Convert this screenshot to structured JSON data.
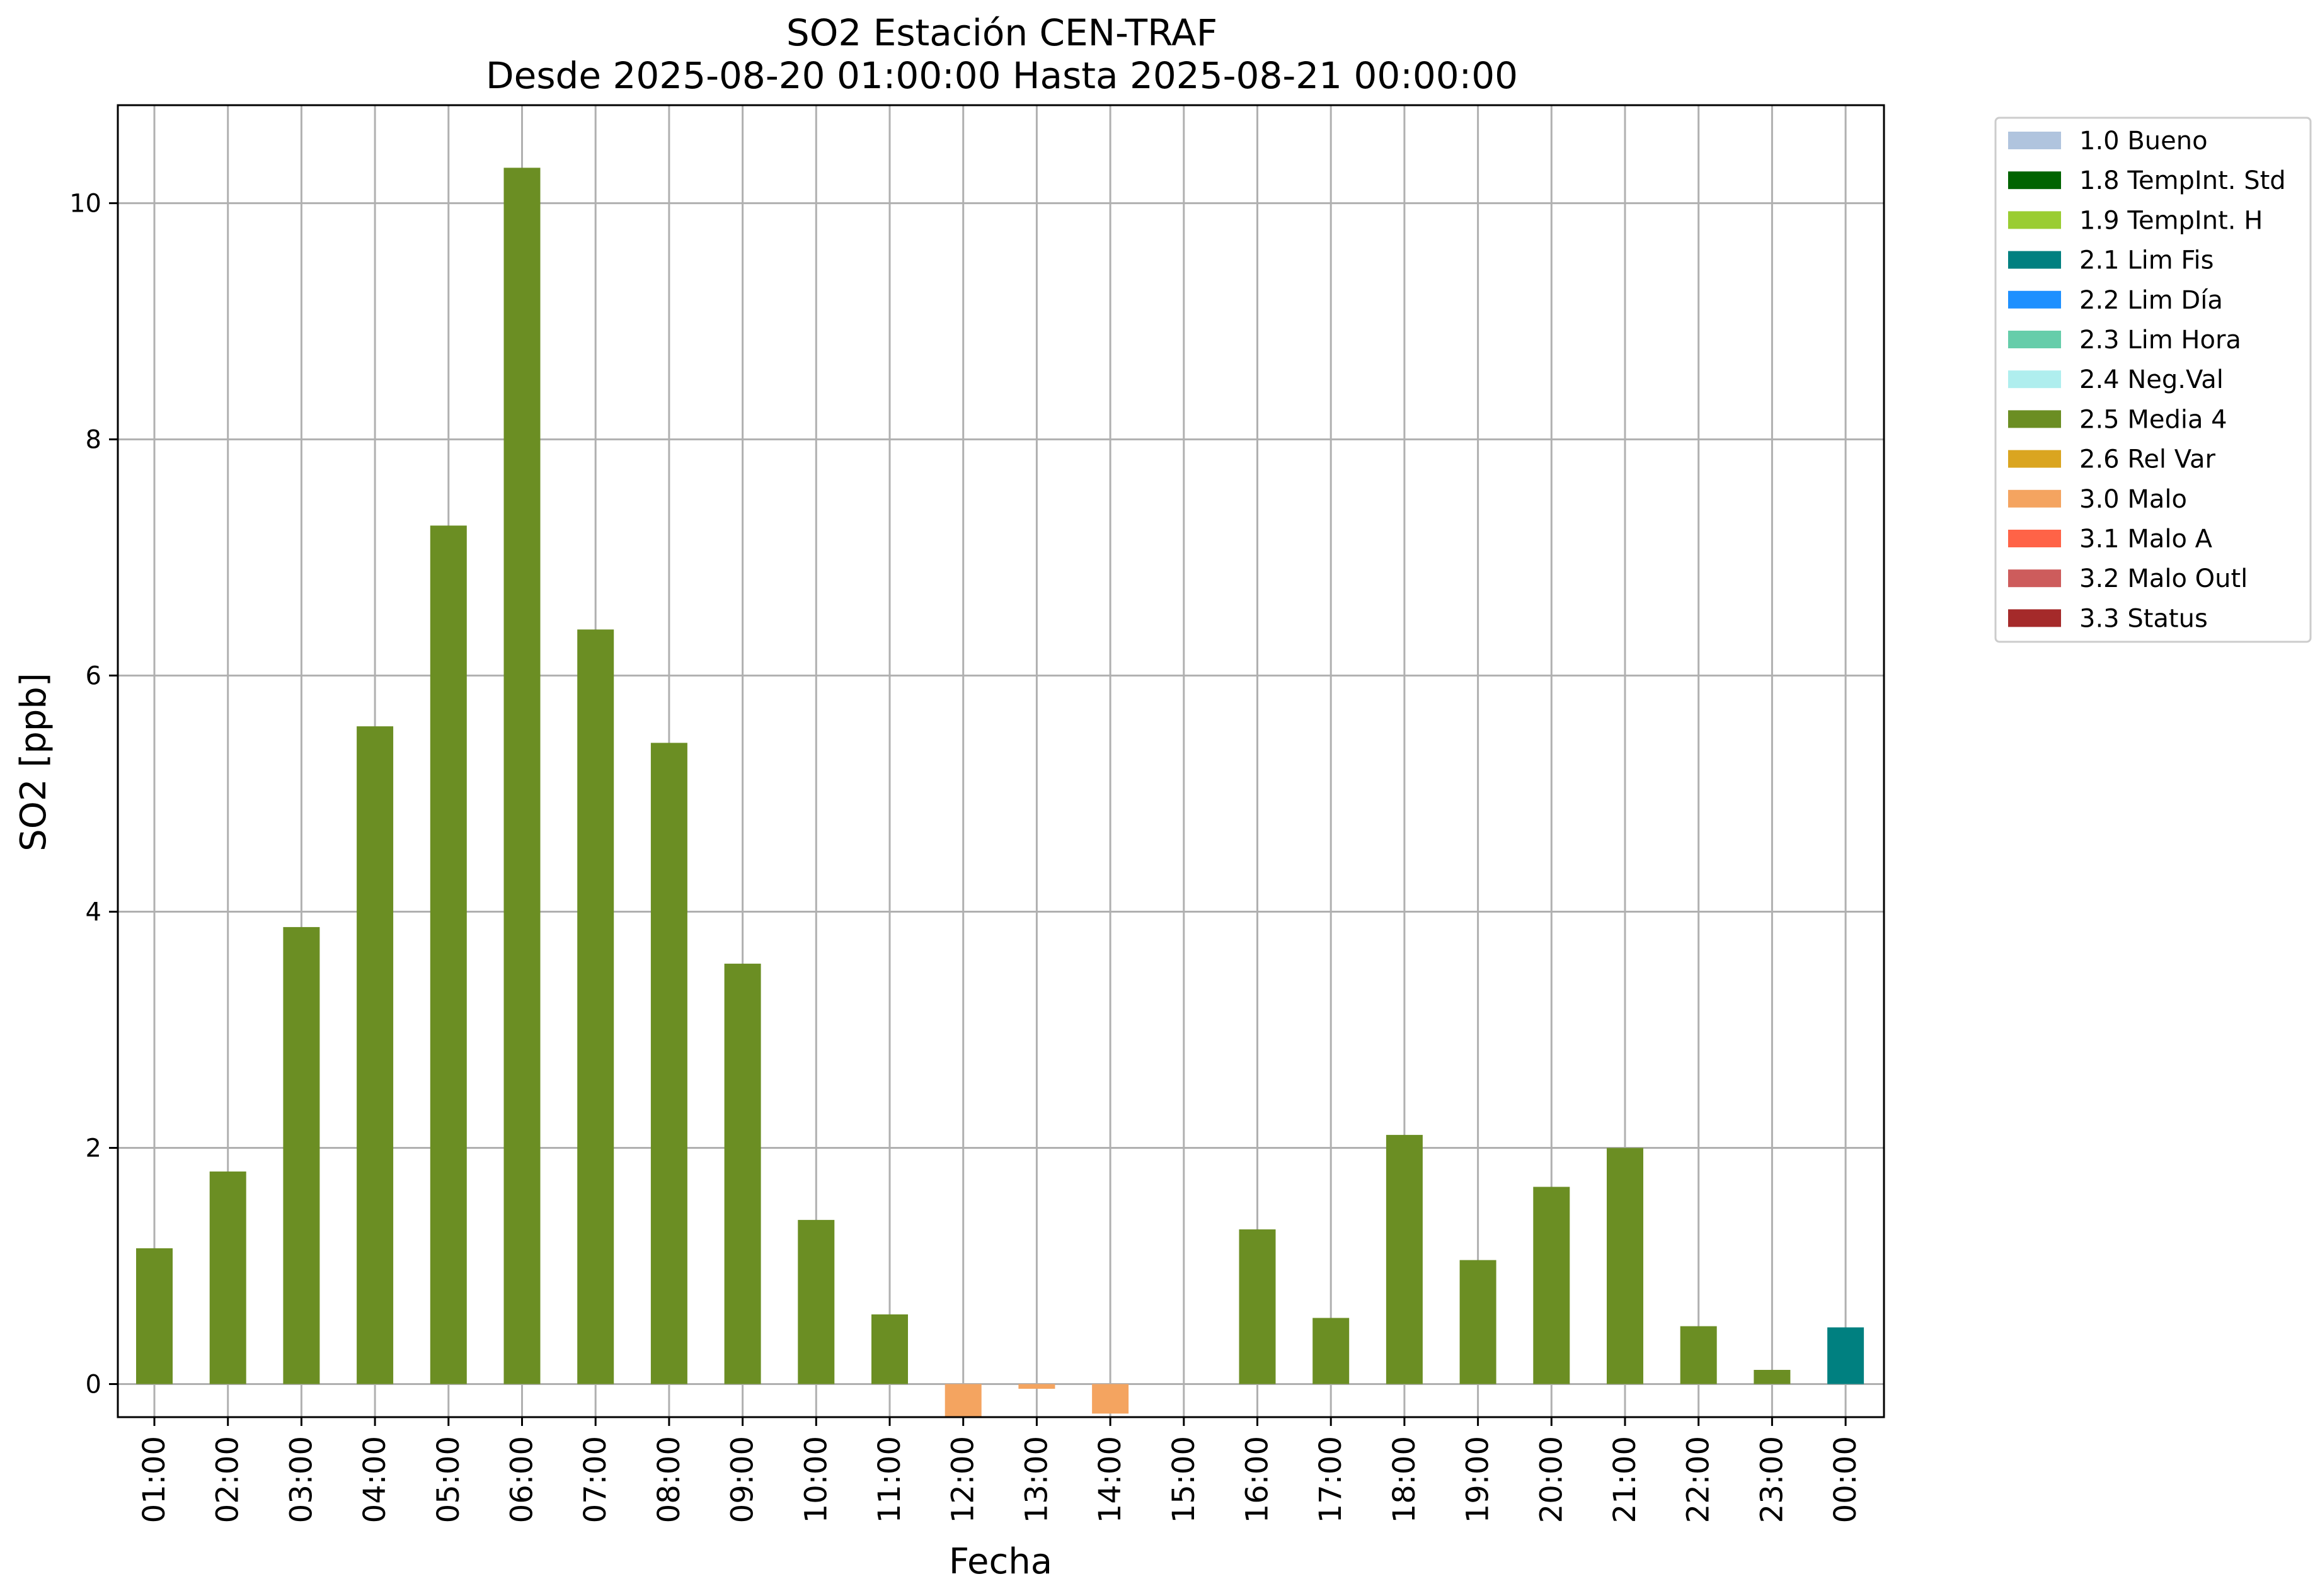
{
  "chart_data": {
    "type": "bar",
    "title": "SO2 Estación CEN-TRAF",
    "subtitle": "Desde 2025-08-20 01:00:00 Hasta 2025-08-21 00:00:00",
    "xlabel": "Fecha",
    "ylabel": "SO2 [ppb]",
    "ylim": [
      -0.28,
      10.83
    ],
    "yticks": [
      0,
      2,
      4,
      6,
      8,
      10
    ],
    "grid": true,
    "legend_placement": "outside-top-right",
    "categories": [
      "01:00",
      "02:00",
      "03:00",
      "04:00",
      "05:00",
      "06:00",
      "07:00",
      "08:00",
      "09:00",
      "10:00",
      "11:00",
      "12:00",
      "13:00",
      "14:00",
      "15:00",
      "16:00",
      "17:00",
      "18:00",
      "19:00",
      "20:00",
      "21:00",
      "22:00",
      "23:00",
      "00:00"
    ],
    "values": [
      1.15,
      1.8,
      3.87,
      5.57,
      7.27,
      10.3,
      6.39,
      5.43,
      3.56,
      1.39,
      0.59,
      -0.3,
      -0.04,
      -0.25,
      null,
      1.31,
      0.56,
      2.11,
      1.05,
      1.67,
      2.0,
      0.49,
      0.12,
      0.48
    ],
    "flags": [
      "2.5 Media 4",
      "2.5 Media 4",
      "2.5 Media 4",
      "2.5 Media 4",
      "2.5 Media 4",
      "2.5 Media 4",
      "2.5 Media 4",
      "2.5 Media 4",
      "2.5 Media 4",
      "2.5 Media 4",
      "2.5 Media 4",
      "3.0 Malo",
      "3.0 Malo",
      "3.0 Malo",
      null,
      "2.5 Media 4",
      "2.5 Media 4",
      "2.5 Media 4",
      "2.5 Media 4",
      "2.5 Media 4",
      "2.5 Media 4",
      "2.5 Media 4",
      "2.5 Media 4",
      "2.1 Lim Fis"
    ],
    "legend": [
      {
        "label": "1.0 Bueno",
        "color": "#b0c4de"
      },
      {
        "label": "1.8 TempInt. Std",
        "color": "#006400"
      },
      {
        "label": "1.9 TempInt. H",
        "color": "#9acd32"
      },
      {
        "label": "2.1 Lim Fis",
        "color": "#008080"
      },
      {
        "label": "2.2 Lim Día",
        "color": "#1e90ff"
      },
      {
        "label": "2.3 Lim Hora",
        "color": "#66cdaa"
      },
      {
        "label": "2.4 Neg.Val",
        "color": "#afeeee"
      },
      {
        "label": "2.5 Media 4",
        "color": "#6b8e23"
      },
      {
        "label": "2.6 Rel Var",
        "color": "#daa520"
      },
      {
        "label": "3.0 Malo",
        "color": "#f4a460"
      },
      {
        "label": "3.1 Malo A",
        "color": "#ff6347"
      },
      {
        "label": "3.2 Malo Outl",
        "color": "#cd5c5c"
      },
      {
        "label": "3.3 Status",
        "color": "#a52a2a"
      }
    ]
  }
}
